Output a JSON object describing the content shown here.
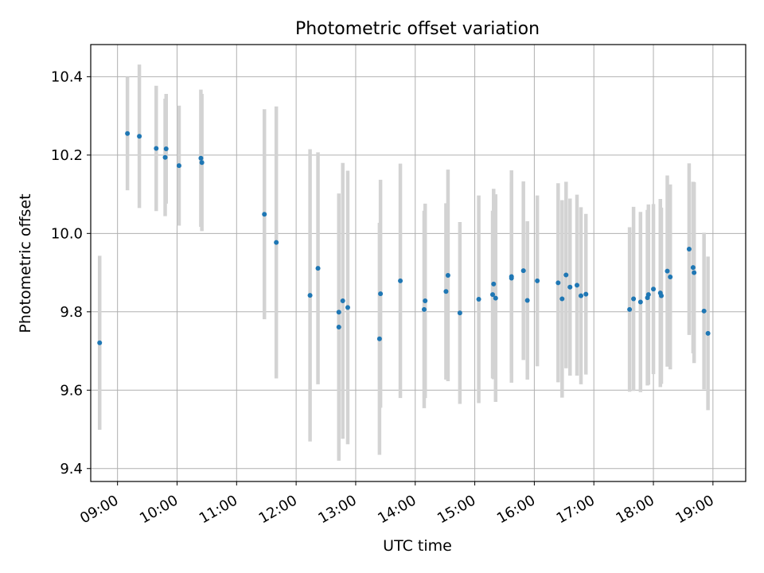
{
  "chart_data": {
    "type": "scatter",
    "title": "Photometric offset variation",
    "xlabel": "UTC time",
    "ylabel": "Photometric offset",
    "x_unit": "hours UTC",
    "xlim": [
      "08:33",
      "19:33"
    ],
    "ylim": [
      9.367,
      10.482
    ],
    "x_ticks": [
      "09:00",
      "10:00",
      "11:00",
      "12:00",
      "13:00",
      "14:00",
      "15:00",
      "16:00",
      "17:00",
      "18:00",
      "19:00"
    ],
    "y_ticks": [
      "9.4",
      "9.6",
      "9.8",
      "10.0",
      "10.2",
      "10.4"
    ],
    "grid": true,
    "point_color": "#1f77b4",
    "errorbar_color": "#d3d3d3",
    "series": [
      {
        "x": [
          "08:42",
          "09:10",
          "09:22",
          "09:39",
          "09:48",
          "09:49",
          "10:02",
          "10:24",
          "10:25",
          "11:28",
          "11:40",
          "12:14",
          "12:22",
          "12:43",
          "12:43",
          "12:47",
          "12:52",
          "13:24",
          "13:25",
          "13:45",
          "14:09",
          "14:10",
          "14:31",
          "14:33",
          "14:45",
          "15:04",
          "15:18",
          "15:19",
          "15:21",
          "15:37",
          "15:37",
          "15:49",
          "15:53",
          "16:03",
          "16:24",
          "16:28",
          "16:32",
          "16:36",
          "16:43",
          "16:47",
          "16:52",
          "17:36",
          "17:40",
          "17:47",
          "17:54",
          "17:55",
          "18:00",
          "18:07",
          "18:08",
          "18:14",
          "18:17",
          "18:36",
          "18:40",
          "18:41",
          "18:51",
          "18:55"
        ],
        "y": [
          9.721,
          10.255,
          10.248,
          10.217,
          10.194,
          10.216,
          10.173,
          10.192,
          10.181,
          10.049,
          9.977,
          9.842,
          9.911,
          9.761,
          9.799,
          9.828,
          9.811,
          9.731,
          9.846,
          9.879,
          9.806,
          9.828,
          9.852,
          9.893,
          9.797,
          9.832,
          9.844,
          9.871,
          9.835,
          9.89,
          9.886,
          9.905,
          9.829,
          9.879,
          9.874,
          9.833,
          9.894,
          9.863,
          9.868,
          9.841,
          9.845,
          9.806,
          9.833,
          9.825,
          9.836,
          9.844,
          9.858,
          9.848,
          9.841,
          9.904,
          9.889,
          9.96,
          9.913,
          9.9,
          9.802,
          9.745
        ],
        "err": [
          0.222,
          0.145,
          0.183,
          0.16,
          0.15,
          0.14,
          0.153,
          0.175,
          0.175,
          0.268,
          0.347,
          0.373,
          0.296,
          0.341,
          0.298,
          0.352,
          0.349,
          0.296,
          0.291,
          0.299,
          0.252,
          0.248,
          0.225,
          0.27,
          0.232,
          0.265,
          0.214,
          0.243,
          0.265,
          0.271,
          0.243,
          0.228,
          0.202,
          0.218,
          0.254,
          0.252,
          0.238,
          0.226,
          0.231,
          0.226,
          0.205,
          0.21,
          0.235,
          0.23,
          0.224,
          0.23,
          0.217,
          0.24,
          0.225,
          0.244,
          0.236,
          0.219,
          0.219,
          0.231,
          0.2,
          0.196
        ]
      }
    ]
  }
}
